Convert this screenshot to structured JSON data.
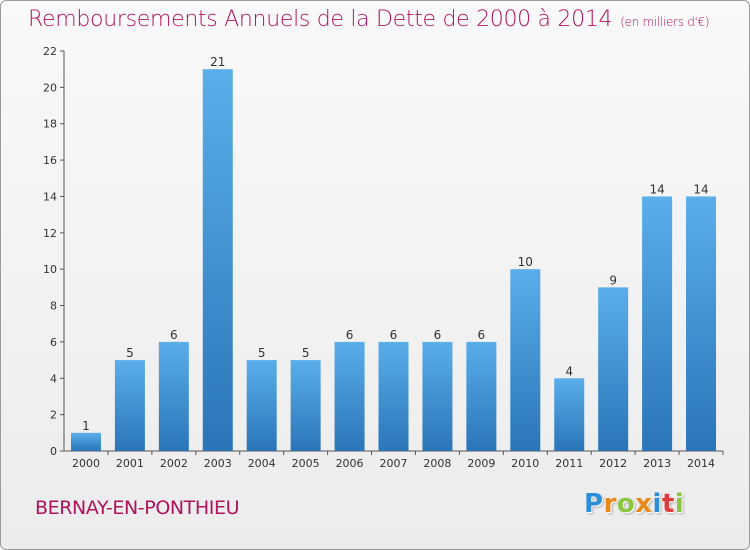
{
  "title": "Remboursements Annuels de la Dette de 2000 à 2014",
  "subtitle": "(en milliers d'€)",
  "commune": "BERNAY-EN-PONTHIEU",
  "logo": {
    "letters": [
      "P",
      "r",
      "o",
      "x",
      "i",
      "t",
      "i"
    ],
    "colors": [
      "#2a8fd8",
      "#e8891a",
      "#8cc63f",
      "#e8891a",
      "#2a8fd8",
      "#e23b3b",
      "#8cc63f"
    ]
  },
  "colors": {
    "title": "#b0135c",
    "bar_light": "#5aaeea",
    "bar_dark": "#2a75b8"
  },
  "chart_data": {
    "type": "bar",
    "categories": [
      "2000",
      "2001",
      "2002",
      "2003",
      "2004",
      "2005",
      "2006",
      "2007",
      "2008",
      "2009",
      "2010",
      "2011",
      "2012",
      "2013",
      "2014"
    ],
    "values": [
      1,
      5,
      6,
      21,
      5,
      5,
      6,
      6,
      6,
      6,
      10,
      4,
      9,
      14,
      14
    ],
    "ylim": [
      0,
      22
    ],
    "yticks": [
      0,
      2,
      4,
      6,
      8,
      10,
      12,
      14,
      16,
      18,
      20,
      22
    ],
    "grid": false,
    "legend": "none"
  }
}
